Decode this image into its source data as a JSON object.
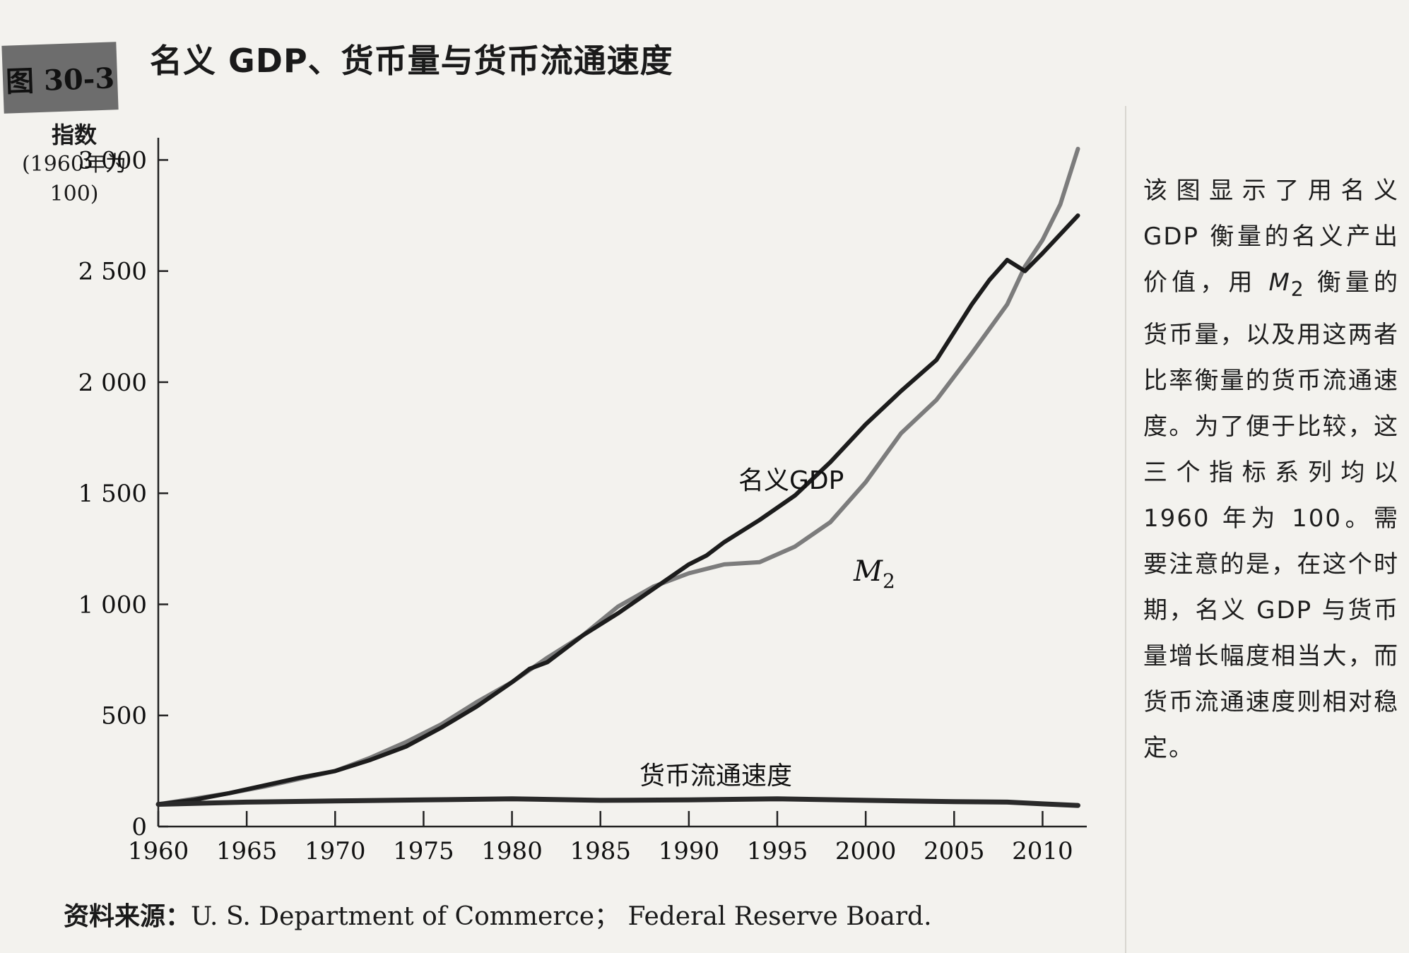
{
  "figure": {
    "badge": "图 30-3",
    "title": "名义 GDP、货币量与货币流通速度"
  },
  "chart_data": {
    "type": "line",
    "ylabel_line1": "指数",
    "ylabel_line2": "(1960年为100)",
    "xlim": [
      1960,
      2012.5
    ],
    "ylim": [
      0,
      3100
    ],
    "x_ticks": [
      1960,
      1965,
      1970,
      1975,
      1980,
      1985,
      1990,
      1995,
      2000,
      2005,
      2010
    ],
    "x_tick_labels": [
      "1960",
      "1965",
      "1970",
      "1975",
      "1980",
      "1985",
      "1990",
      "1995",
      "2000",
      "2005",
      "2010"
    ],
    "y_ticks": [
      0,
      500,
      1000,
      1500,
      2000,
      2500,
      3000
    ],
    "y_tick_labels": [
      "0",
      "500",
      "1 000",
      "1 500",
      "2 000",
      "2 500",
      "3 000"
    ],
    "series": [
      {
        "name": "名义GDP",
        "color": "#1c1c1c",
        "x": [
          1960,
          1962,
          1964,
          1966,
          1968,
          1970,
          1972,
          1974,
          1976,
          1978,
          1980,
          1981,
          1982,
          1984,
          1986,
          1988,
          1990,
          1991,
          1992,
          1994,
          1996,
          1998,
          2000,
          2002,
          2004,
          2006,
          2007,
          2008,
          2009,
          2010,
          2012
        ],
        "values": [
          100,
          120,
          150,
          185,
          220,
          250,
          300,
          360,
          445,
          540,
          650,
          710,
          740,
          860,
          960,
          1070,
          1180,
          1220,
          1280,
          1380,
          1490,
          1640,
          1810,
          1960,
          2100,
          2350,
          2460,
          2550,
          2500,
          2580,
          2750
        ]
      },
      {
        "name": "M2",
        "color": "#7c7c7c",
        "x": [
          1960,
          1962,
          1964,
          1966,
          1968,
          1970,
          1972,
          1974,
          1976,
          1978,
          1980,
          1982,
          1984,
          1986,
          1988,
          1990,
          1992,
          1994,
          1996,
          1998,
          2000,
          2002,
          2004,
          2006,
          2008,
          2009,
          2010,
          2011,
          2012
        ],
        "values": [
          100,
          125,
          150,
          180,
          215,
          250,
          310,
          380,
          460,
          560,
          650,
          760,
          860,
          990,
          1080,
          1140,
          1180,
          1190,
          1260,
          1370,
          1550,
          1770,
          1920,
          2130,
          2350,
          2520,
          2640,
          2800,
          3050
        ]
      },
      {
        "name": "货币流通速度",
        "color": "#2a2a2a",
        "x": [
          1960,
          1965,
          1970,
          1975,
          1980,
          1985,
          1990,
          1995,
          2000,
          2005,
          2008,
          2010,
          2012
        ],
        "values": [
          100,
          110,
          115,
          120,
          125,
          118,
          120,
          125,
          118,
          112,
          110,
          102,
          95
        ]
      }
    ],
    "series_labels": {
      "gdp": "名义GDP",
      "m2_main": "M",
      "m2_sub": "2",
      "velocity": "货币流通速度"
    }
  },
  "side_note": {
    "p1": "该图显示了用名义 GDP 衡量的名义产出价值，用 ",
    "m": "M",
    "sub": "2",
    "p2": " 衡量的货币量，以及用这两者比率衡量的货币流通速度。为了便于比较，这三个指标系列均以 1960 年为 100。需要注意的是，在这个时期，名义 GDP 与货币量增长幅度相当大，而货币流通速度则相对稳定。"
  },
  "source": {
    "label": "资料来源：",
    "text": "U. S.  Department of Commerce； Federal Reserve Board."
  }
}
